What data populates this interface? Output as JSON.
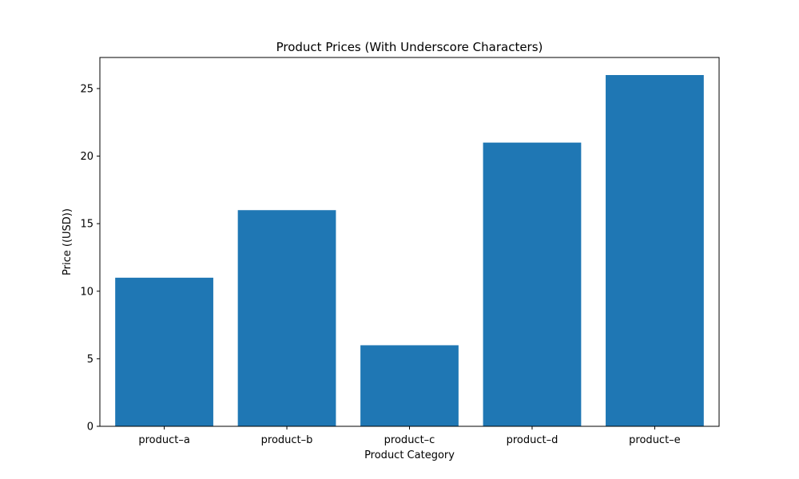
{
  "chart_data": {
    "type": "bar",
    "title": "Product Prices (With Underscore Characters)",
    "xlabel": "Product Category",
    "ylabel": "Price ((USD))",
    "categories": [
      "product–a",
      "product–b",
      "product–c",
      "product–d",
      "product–e"
    ],
    "values": [
      11,
      16,
      6,
      21,
      26
    ],
    "ylim": [
      0,
      27.3
    ],
    "yticks": [
      0,
      5,
      10,
      15,
      20,
      25
    ],
    "bar_color": "#1f77b4",
    "grid": false,
    "legend": "none"
  }
}
